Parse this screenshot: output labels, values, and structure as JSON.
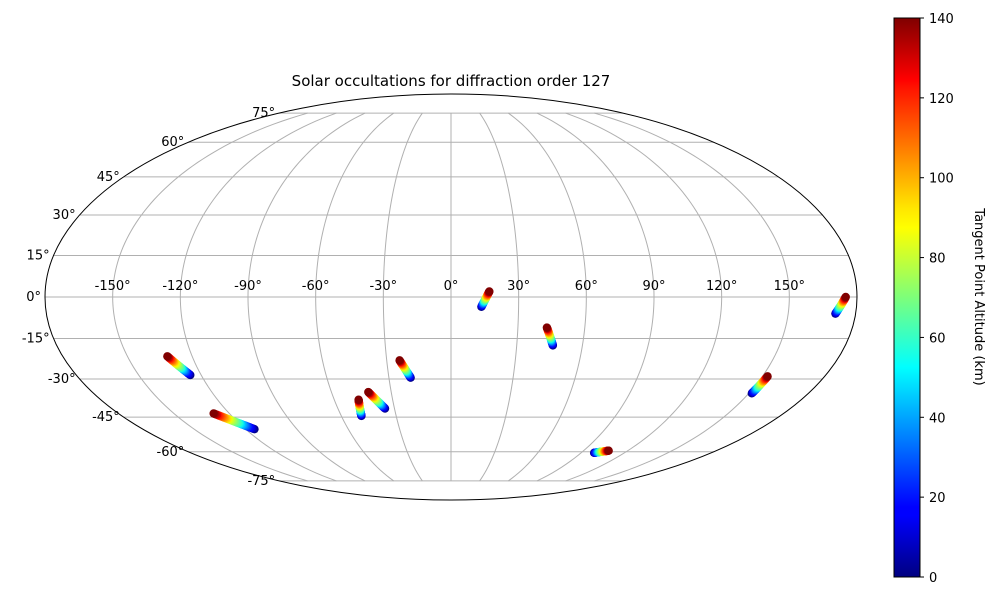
{
  "chart_data": {
    "type": "scatter",
    "projection": "mollweide",
    "title": "Solar occultations for diffraction order 127",
    "colorbar": {
      "label": "Tangent Point Altitude (km)",
      "min": 0,
      "max": 140,
      "ticks": [
        0,
        20,
        40,
        60,
        80,
        100,
        120,
        140
      ],
      "colormap": "jet"
    },
    "longitude_ticks": [
      -150,
      -120,
      -90,
      -60,
      -30,
      0,
      30,
      60,
      90,
      120,
      150
    ],
    "longitude_tick_labels": [
      "-150°",
      "-120°",
      "-90°",
      "-60°",
      "-30°",
      "0°",
      "30°",
      "60°",
      "90°",
      "120°",
      "150°"
    ],
    "latitude_ticks": [
      -75,
      -60,
      -45,
      -30,
      -15,
      0,
      15,
      30,
      45,
      60,
      75
    ],
    "latitude_tick_labels": [
      "-75°",
      "-60°",
      "-45°",
      "-30°",
      "-15°",
      "0°",
      "15°",
      "30°",
      "45°",
      "60°",
      "75°"
    ],
    "grid": true,
    "colorbar_position": "right",
    "tracks": [
      {
        "start": [
          -131.5,
          -21.5
        ],
        "end": [
          -125.2,
          -28.5
        ],
        "alt_start": 140,
        "alt_end": 0
      },
      {
        "start": [
          -128.5,
          -43.5
        ],
        "end": [
          -114.8,
          -50.0
        ],
        "alt_start": 140,
        "alt_end": 0
      },
      {
        "start": [
          -47.5,
          -38.0
        ],
        "end": [
          -49.0,
          -44.5
        ],
        "alt_start": 140,
        "alt_end": 0
      },
      {
        "start": [
          -41.5,
          -35.0
        ],
        "end": [
          -35.0,
          -41.5
        ],
        "alt_start": 140,
        "alt_end": 0
      },
      {
        "start": [
          -24.0,
          -23.0
        ],
        "end": [
          -19.5,
          -29.5
        ],
        "alt_start": 140,
        "alt_end": 0
      },
      {
        "start": [
          17.0,
          2.0
        ],
        "end": [
          13.5,
          -3.5
        ],
        "alt_start": 140,
        "alt_end": 0
      },
      {
        "start": [
          43.0,
          -11.0
        ],
        "end": [
          46.5,
          -17.5
        ],
        "alt_start": 140,
        "alt_end": 0
      },
      {
        "start": [
          107.0,
          -59.5
        ],
        "end": [
          99.0,
          -60.5
        ],
        "alt_start": 140,
        "alt_end": 0
      },
      {
        "start": [
          152.5,
          -29.0
        ],
        "end": [
          151.5,
          -35.5
        ],
        "alt_start": 140,
        "alt_end": 0
      },
      {
        "start": [
          175.0,
          0.0
        ],
        "end": [
          171.0,
          -6.0
        ],
        "alt_start": 140,
        "alt_end": 0
      }
    ]
  }
}
